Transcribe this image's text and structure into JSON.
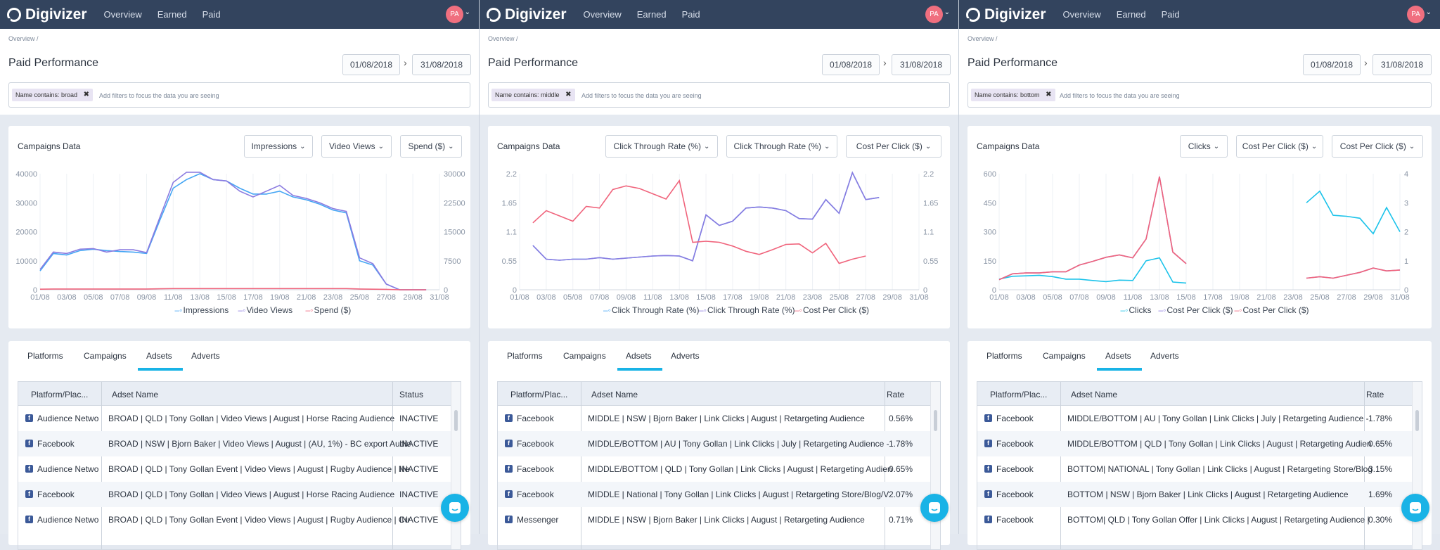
{
  "nav": {
    "logo": "Digivizer",
    "links": [
      "Overview",
      "Earned",
      "Paid"
    ],
    "avatar": "PA"
  },
  "page": {
    "crumb": "Overview /",
    "title": "Paid Performance",
    "date_from": "01/08/2018",
    "date_to": "31/08/2018",
    "filter_hint": "Add filters to focus the data you are seeing"
  },
  "tabs": [
    "Platforms",
    "Campaigns",
    "Adsets",
    "Adverts"
  ],
  "colors": {
    "blue": "#45a6f4",
    "purple": "#8b7be0",
    "pink": "#f0647c",
    "cyan": "#1cc3ea",
    "nav": "#33445e",
    "accent": "#19b3e6"
  },
  "panels": [
    {
      "filter_chip": "Name contains: broad",
      "dropdowns": [
        "Impressions",
        "Video Views",
        "Spend ($)"
      ],
      "chart_title": "Campaigns Data",
      "legend": [
        "Impressions",
        "Video Views",
        "Spend ($)"
      ],
      "columns": [
        "Platform/Plac...",
        "Adset Name",
        "Status"
      ],
      "rows": [
        {
          "platform": "Audience Netwo",
          "name": "BROAD | QLD | Tony Gollan | Video Views | August | Horse Racing Audience",
          "status": "INACTIVE"
        },
        {
          "platform": "Facebook",
          "name": "BROAD | NSW | Bjorn Baker | Video Views | August | (AU, 1%) - BC export Audie",
          "status": "INACTIVE"
        },
        {
          "platform": "Audience Netwo",
          "name": "BROAD | QLD | Tony Gollan Event | Video Views | August | Rugby Audience | Ne",
          "status": "INACTIVE"
        },
        {
          "platform": "Facebook",
          "name": "BROAD | QLD | Tony Gollan | Video Views | August | Horse Racing Audience",
          "status": "INACTIVE"
        },
        {
          "platform": "Audience Netwo",
          "name": "BROAD | QLD | Tony Gollan Event | Video Views | August | Rugby Audience | Cu",
          "status": "INACTIVE"
        }
      ]
    },
    {
      "filter_chip": "Name contains: middle",
      "dropdowns": [
        "Click Through Rate (%)",
        "Click Through Rate (%)",
        "Cost Per Click ($)"
      ],
      "chart_title": "Campaigns Data",
      "legend": [
        "Click Through Rate (%)",
        "Click Through Rate (%)",
        "Cost Per Click ($)"
      ],
      "columns": [
        "Platform/Plac...",
        "Adset Name",
        "Rate"
      ],
      "rows": [
        {
          "platform": "Facebook",
          "name": "MIDDLE | NSW | Bjorn Baker | Link Clicks | August | Retargeting Audience",
          "status": "0.56%"
        },
        {
          "platform": "Facebook",
          "name": "MIDDLE/BOTTOM | AU | Tony Gollan | Link Clicks | July | Retargeting Audience -",
          "status": "1.78%"
        },
        {
          "platform": "Facebook",
          "name": "MIDDLE/BOTTOM | QLD | Tony Gollan | Link Clicks | August | Retargeting Audien",
          "status": "0.65%"
        },
        {
          "platform": "Facebook",
          "name": "MIDDLE | National | Tony Gollan | Link Clicks | August | Retargeting Store/Blog/V",
          "status": "2.07%"
        },
        {
          "platform": "Messenger",
          "name": "MIDDLE | NSW | Bjorn Baker | Link Clicks | August | Retargeting Audience",
          "status": "0.71%"
        }
      ]
    },
    {
      "filter_chip": "Name contains: bottom",
      "dropdowns": [
        "Clicks",
        "Cost Per Click ($)",
        "Cost Per Click ($)"
      ],
      "chart_title": "Campaigns Data",
      "legend": [
        "Clicks",
        "Cost Per Click ($)",
        "Cost Per Click ($)"
      ],
      "columns": [
        "Platform/Plac...",
        "Adset Name",
        "Rate"
      ],
      "rows": [
        {
          "platform": "Facebook",
          "name": "MIDDLE/BOTTOM | AU | Tony Gollan | Link Clicks | July | Retargeting Audience -",
          "status": "1.78%"
        },
        {
          "platform": "Facebook",
          "name": "MIDDLE/BOTTOM | QLD | Tony Gollan | Link Clicks | August | Retargeting Audien",
          "status": "0.65%"
        },
        {
          "platform": "Facebook",
          "name": "BOTTOM| NATIONAL | Tony Gollan | Link Clicks | August | Retargeting Store/Blog",
          "status": "3.15%"
        },
        {
          "platform": "Facebook",
          "name": "BOTTOM | NSW | Bjorn Baker | Link Clicks | August | Retargeting Audience",
          "status": "1.69%"
        },
        {
          "platform": "Facebook",
          "name": "BOTTOM| QLD | Tony Gollan Offer | Link Clicks | August | Retargeting Audience |",
          "status": "0.30%"
        }
      ]
    }
  ],
  "chart_data": [
    {
      "type": "line",
      "title": "Campaigns Data",
      "x_ticks": [
        "01/08",
        "03/08",
        "05/08",
        "07/08",
        "09/08",
        "11/08",
        "13/08",
        "15/08",
        "17/08",
        "19/08",
        "21/08",
        "23/08",
        "25/08",
        "27/08",
        "29/08",
        "31/08"
      ],
      "y_left_ticks": [
        "0",
        "10000",
        "20000",
        "30000",
        "40000"
      ],
      "y_right_ticks": [
        "0",
        "7500",
        "15000",
        "22500",
        "30000"
      ],
      "ylim_left": [
        0,
        40000
      ],
      "ylim_right": [
        0,
        30000
      ],
      "series": [
        {
          "name": "Impressions",
          "axis": "left",
          "color": "#45a6f4",
          "values": [
            6500,
            12500,
            12000,
            13500,
            14000,
            13500,
            13200,
            13000,
            12500,
            24000,
            35000,
            38000,
            40000,
            38000,
            37500,
            35000,
            33000,
            33000,
            34000,
            32000,
            31000,
            29500,
            27500,
            26500,
            10000,
            8500,
            2000,
            0,
            0,
            0
          ]
        },
        {
          "name": "Video Views",
          "axis": "left",
          "color": "#8b7be0",
          "values": [
            7000,
            13000,
            12500,
            14000,
            14200,
            13000,
            13800,
            13800,
            12800,
            25000,
            37000,
            40500,
            40500,
            38000,
            37500,
            34000,
            32000,
            34000,
            36000,
            32500,
            31500,
            30000,
            28000,
            27000,
            11000,
            9000,
            2000,
            0,
            0,
            0
          ]
        },
        {
          "name": "Spend ($)",
          "axis": "right",
          "color": "#f0647c",
          "values": [
            150,
            200,
            200,
            200,
            200,
            200,
            200,
            200,
            200,
            250,
            300,
            300,
            300,
            300,
            300,
            300,
            300,
            300,
            300,
            300,
            300,
            300,
            300,
            300,
            200,
            150,
            100,
            0,
            0,
            0
          ]
        }
      ]
    },
    {
      "type": "line",
      "title": "Campaigns Data",
      "x_ticks": [
        "01/08",
        "03/08",
        "05/08",
        "07/08",
        "09/08",
        "11/08",
        "13/08",
        "15/08",
        "17/08",
        "19/08",
        "21/08",
        "23/08",
        "25/08",
        "27/08",
        "29/08",
        "31/08"
      ],
      "y_left_ticks": [
        "0",
        "0.55",
        "1.1",
        "1.65",
        "2.2"
      ],
      "y_right_ticks": [
        "0",
        "0.55",
        "1.1",
        "1.65",
        "2.2"
      ],
      "ylim_left": [
        0,
        2.2
      ],
      "ylim_right": [
        0,
        2.2
      ],
      "series": [
        {
          "name": "Click Through Rate (%)",
          "axis": "left",
          "color": "#45a6f4",
          "values": [
            0.84,
            0.58,
            0.56,
            0.58,
            0.58,
            0.61,
            0.58,
            0.6,
            0.62,
            0.64,
            0.65,
            0.64,
            0.55,
            1.42,
            1.22,
            1.3,
            1.55,
            1.57,
            1.55,
            1.5,
            1.35,
            1.34,
            1.71,
            1.45,
            2.22,
            1.71,
            1.75
          ]
        },
        {
          "name": "Click Through Rate (%)",
          "axis": "left",
          "color": "#8b7be0",
          "values": [
            0.84,
            0.58,
            0.56,
            0.58,
            0.58,
            0.61,
            0.58,
            0.6,
            0.62,
            0.64,
            0.65,
            0.64,
            0.55,
            1.42,
            1.22,
            1.3,
            1.55,
            1.57,
            1.55,
            1.5,
            1.35,
            1.34,
            1.71,
            1.45,
            2.22,
            1.71,
            1.75
          ]
        },
        {
          "name": "Cost Per Click ($)",
          "axis": "right",
          "color": "#f0647c",
          "values": [
            1.27,
            1.5,
            1.4,
            1.3,
            1.58,
            1.55,
            1.9,
            1.97,
            1.92,
            1.82,
            1.72,
            2.07,
            0.9,
            0.92,
            0.9,
            0.83,
            0.73,
            0.67,
            0.76,
            0.86,
            0.87,
            0.7,
            0.88,
            0.5,
            0.58,
            0.64
          ]
        }
      ]
    },
    {
      "type": "line",
      "title": "Campaigns Data",
      "x_ticks": [
        "01/08",
        "03/08",
        "05/08",
        "07/08",
        "09/08",
        "11/08",
        "13/08",
        "15/08",
        "17/08",
        "19/08",
        "21/08",
        "23/08",
        "25/08",
        "27/08",
        "29/08",
        "31/08"
      ],
      "y_left_ticks": [
        "0",
        "150",
        "300",
        "450",
        "600"
      ],
      "y_right_ticks": [
        "0",
        "1",
        "2",
        "3",
        "4"
      ],
      "ylim_left": [
        0,
        600
      ],
      "ylim_right": [
        0,
        4
      ],
      "series": [
        {
          "name": "Clicks",
          "axis": "left",
          "color": "#1cc3ea",
          "values": [
            55,
            70,
            72,
            75,
            68,
            55,
            55,
            48,
            42,
            50,
            48,
            150,
            165,
            40,
            35,
            null,
            null,
            null,
            null,
            null,
            null,
            null,
            null,
            450,
            510,
            385,
            380,
            370,
            290,
            425,
            300
          ]
        },
        {
          "name": "Cost Per Click ($)",
          "axis": "right",
          "color": "#8b7be0",
          "values": [
            0.35,
            0.55,
            0.58,
            0.58,
            0.62,
            0.62,
            0.85,
            0.98,
            1.12,
            1.2,
            1.1,
            1.75,
            3.9,
            1.3,
            0.9,
            null,
            null,
            null,
            null,
            null,
            null,
            null,
            null,
            0.4,
            0.45,
            0.4,
            0.5,
            0.6,
            0.75,
            0.65,
            0.68
          ]
        },
        {
          "name": "Cost Per Click ($)",
          "axis": "right",
          "color": "#f0647c",
          "values": [
            0.35,
            0.55,
            0.58,
            0.58,
            0.62,
            0.62,
            0.85,
            0.98,
            1.12,
            1.2,
            1.1,
            1.75,
            3.9,
            1.3,
            0.9,
            null,
            null,
            null,
            null,
            null,
            null,
            null,
            null,
            0.4,
            0.45,
            0.4,
            0.5,
            0.6,
            0.75,
            0.65,
            0.68
          ]
        }
      ]
    }
  ]
}
